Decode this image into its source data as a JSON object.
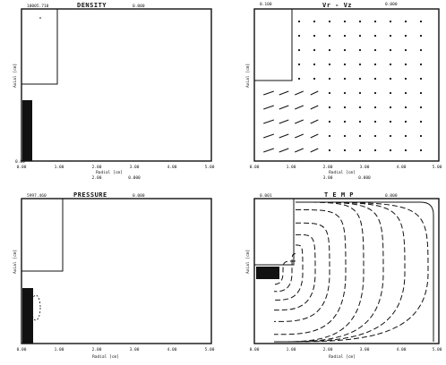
{
  "panels": {
    "density": {
      "title": "DENSITY",
      "top_left": "10005.710",
      "top_right": "0.000",
      "y_ticks": [
        "0.00",
        "1.00",
        "2.00",
        "3.00",
        "4.00",
        "5.00",
        "6.00",
        "7.00"
      ],
      "x_ticks": [
        "0.00",
        "1.00",
        "2.00",
        "3.00",
        "4.00",
        "5.00"
      ],
      "ylabel": "Axial [cm]"
    },
    "velocity": {
      "title": "Vr - Vz",
      "top_left": "0.100",
      "top_right": "0.000",
      "y_ticks": [
        "0.00",
        "1.00",
        "2.00",
        "3.00",
        "4.00",
        "5.00",
        "6.00",
        "7.00"
      ],
      "x_ticks": [
        "0.00",
        "1.00",
        "2.00",
        "3.00",
        "4.00",
        "5.00"
      ],
      "xlabel": "Radial [cm]",
      "sub1": "3.00",
      "sub2": "0.000",
      "ylabel": "Axial [cm]"
    },
    "pressure": {
      "title": "PRESSURE",
      "top_left": "5997.460",
      "top_right": "0.000",
      "y_ticks": [
        "0.00",
        "1.00",
        "2.00",
        "3.00",
        "4.00",
        "5.00",
        "6.00",
        "7.00"
      ],
      "x_ticks": [
        "0.00",
        "1.00",
        "2.00",
        "3.00",
        "4.00",
        "5.00"
      ],
      "xlabel": "Radial [cm]",
      "ylabel": "Axial [cm]"
    },
    "temp": {
      "title": "T E M P",
      "top_left": "0.001",
      "top_right": "0.000",
      "y_ticks": [
        "0.00",
        "1.00",
        "2.00",
        "3.00",
        "4.00",
        "5.00",
        "6.00",
        "7.00"
      ],
      "x_ticks": [
        "0.00",
        "1.00",
        "2.00",
        "3.00",
        "4.00",
        "5.00"
      ],
      "xlabel": "Radial [cm]",
      "ylabel": "Axial [cm]"
    },
    "density_xlabel": "Radial [cm]",
    "density_sub1": "2.00",
    "density_sub2": "0.000"
  }
}
